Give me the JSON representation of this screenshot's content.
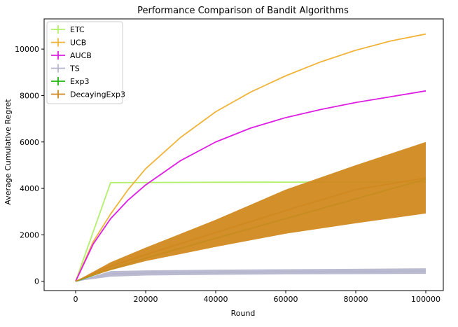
{
  "chart_data": {
    "type": "line",
    "title": "Performance Comparison of Bandit Algorithms",
    "xlabel": "Round",
    "ylabel": "Average Cumulative Regret",
    "xlim": [
      -9000,
      105000
    ],
    "ylim": [
      -400,
      11300
    ],
    "xticks": [
      0,
      20000,
      40000,
      60000,
      80000,
      100000
    ],
    "xtick_labels": [
      "0",
      "20000",
      "40000",
      "60000",
      "80000",
      "100000"
    ],
    "yticks": [
      0,
      2000,
      4000,
      6000,
      8000,
      10000
    ],
    "ytick_labels": [
      "0",
      "2000",
      "4000",
      "6000",
      "8000",
      "10000"
    ],
    "grid": false,
    "legend_position": "top-left",
    "series": [
      {
        "name": "ETC",
        "color": "#b2f06b",
        "x": [
          0,
          10000,
          20000,
          40000,
          60000,
          80000,
          100000
        ],
        "y": [
          0,
          4250,
          4255,
          4265,
          4270,
          4275,
          4280
        ],
        "band": null
      },
      {
        "name": "UCB",
        "color": "#f0b43a",
        "x": [
          0,
          5000,
          10000,
          15000,
          20000,
          30000,
          40000,
          50000,
          60000,
          70000,
          80000,
          90000,
          100000
        ],
        "y": [
          0,
          1700,
          2900,
          3950,
          4850,
          6200,
          7300,
          8150,
          8850,
          9450,
          9950,
          10350,
          10650
        ],
        "band": null
      },
      {
        "name": "AUCB",
        "color": "#dd1ee3",
        "x": [
          0,
          5000,
          10000,
          15000,
          20000,
          30000,
          40000,
          50000,
          60000,
          70000,
          80000,
          90000,
          100000
        ],
        "y": [
          0,
          1600,
          2700,
          3500,
          4150,
          5200,
          6000,
          6600,
          7050,
          7400,
          7700,
          7950,
          8200
        ],
        "band": null
      },
      {
        "name": "TS",
        "color": "#b6b6cf",
        "x": [
          0,
          10000,
          20000,
          40000,
          60000,
          80000,
          100000
        ],
        "y": [
          0,
          320,
          360,
          390,
          410,
          425,
          440
        ],
        "band": {
          "lower": [
            0,
            200,
            250,
            280,
            300,
            310,
            320
          ],
          "upper": [
            0,
            440,
            470,
            500,
            520,
            540,
            560
          ]
        }
      },
      {
        "name": "Exp3",
        "color": "#1fb80f",
        "x": [
          0,
          10000,
          20000,
          40000,
          60000,
          80000,
          100000
        ],
        "y": [
          0,
          520,
          1000,
          1850,
          2700,
          3550,
          4400
        ],
        "band": null
      },
      {
        "name": "DecayingExp3",
        "color": "#d0891f",
        "x": [
          0,
          10000,
          20000,
          40000,
          60000,
          80000,
          100000
        ],
        "y": [
          0,
          650,
          1150,
          2100,
          3050,
          3950,
          4450
        ],
        "band": {
          "lower": [
            0,
            480,
            870,
            1480,
            2050,
            2500,
            2920
          ],
          "upper": [
            0,
            820,
            1450,
            2650,
            3950,
            5000,
            6000
          ]
        }
      }
    ]
  }
}
